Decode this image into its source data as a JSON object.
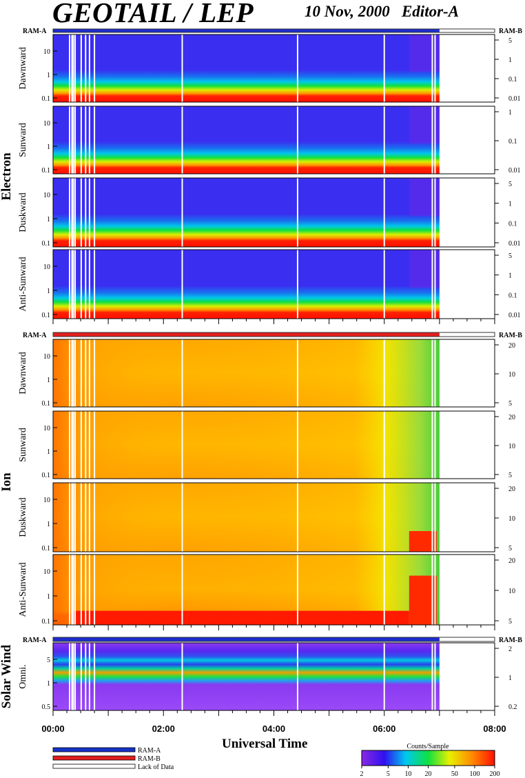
{
  "chart_data": {
    "type": "heatmap",
    "title": "GEOTAIL / LEP",
    "subtitle": "10 Nov, 2000   Editor-A",
    "xlabel": "Universal Time",
    "x_ticks": [
      "00:00",
      "02:00",
      "04:00",
      "06:00",
      "08:00"
    ],
    "xlim_hours": [
      0,
      8
    ],
    "data_end_hour": 7.0,
    "groups": [
      {
        "label": "Electron",
        "panels": [
          {
            "name": "Dawnward",
            "left_ticks": [
              "10",
              "1",
              "0.1"
            ],
            "right_ticks": [
              "5",
              "1",
              "0.1",
              "0.01"
            ]
          },
          {
            "name": "Sunward",
            "left_ticks": [
              "10",
              "1",
              "0.1"
            ],
            "right_ticks": [
              "1",
              "0.1",
              "0.01"
            ]
          },
          {
            "name": "Duskward",
            "left_ticks": [
              "10",
              "1",
              "0.1"
            ],
            "right_ticks": [
              "5",
              "1",
              "0.1",
              "0.01"
            ]
          },
          {
            "name": "Anti-Sunward",
            "left_ticks": [
              "10",
              "1",
              "0.1"
            ],
            "right_ticks": [
              "5",
              "1",
              "0.1",
              "0.01"
            ]
          }
        ]
      },
      {
        "label": "Ion",
        "panels": [
          {
            "name": "Dawnward",
            "left_ticks": [
              "10",
              "1",
              "0.1"
            ],
            "right_ticks": [
              "20",
              "10",
              "5"
            ]
          },
          {
            "name": "Sunward",
            "left_ticks": [
              "10",
              "1",
              "0.1"
            ],
            "right_ticks": [
              "20",
              "10",
              "5"
            ]
          },
          {
            "name": "Duskward",
            "left_ticks": [
              "10",
              "1",
              "0.1"
            ],
            "right_ticks": [
              "20",
              "10",
              "5"
            ]
          },
          {
            "name": "Anti-Sunward",
            "left_ticks": [
              "10",
              "1",
              "0.1"
            ],
            "right_ticks": [
              "20",
              "10",
              "5"
            ]
          }
        ]
      },
      {
        "label": "Solar Wind",
        "panels": [
          {
            "name": "Omni.",
            "left_ticks": [
              "5",
              "1",
              "0.5"
            ],
            "right_ticks": [
              "2",
              "1",
              "0.2"
            ]
          }
        ]
      }
    ],
    "ram_bars": {
      "left_label": "RAM-A",
      "right_label": "RAM-B",
      "electron": "RAM-A",
      "ion": "RAM-B",
      "solar_wind": "RAM-A"
    },
    "data_gaps_hours": [
      0.3,
      0.4,
      0.51,
      0.59,
      0.66,
      0.75,
      2.34,
      4.43,
      6.0,
      6.87,
      6.92
    ],
    "legend": [
      {
        "label": "RAM-A",
        "color": "#1432c8"
      },
      {
        "label": "RAM-B",
        "color": "#e21e1e"
      },
      {
        "label": "Lack of Data",
        "color": "#ffffff"
      }
    ],
    "colorbar": {
      "label": "Counts/Sample",
      "ticks": [
        "2",
        "5",
        "10",
        "20",
        "50",
        "100",
        "200"
      ],
      "scale": "log",
      "range": [
        2,
        200
      ]
    }
  }
}
